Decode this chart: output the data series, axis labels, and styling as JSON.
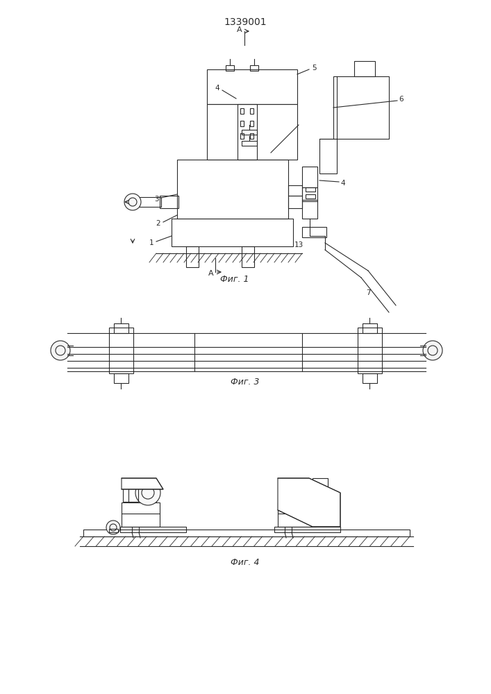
{
  "title": "1339001",
  "bg_color": "#ffffff",
  "line_color": "#2a2a2a",
  "fig1_label": "Фиг. 1",
  "fig3_label": "Фиг. 3",
  "fig4_label": "Фиг. 4"
}
